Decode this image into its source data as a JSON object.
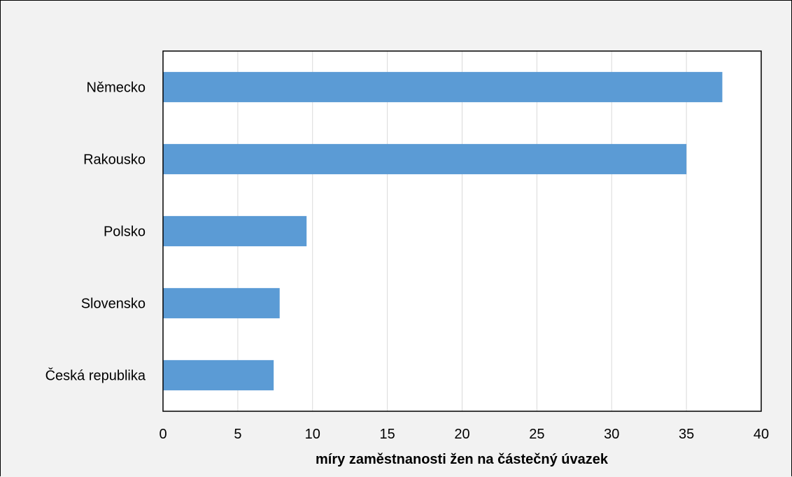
{
  "chart_data": {
    "type": "bar",
    "orientation": "horizontal",
    "categories": [
      "Německo",
      "Rakousko",
      "Polsko",
      "Slovensko",
      "Česká republika"
    ],
    "values": [
      37.4,
      35.0,
      9.6,
      7.8,
      7.4
    ],
    "title": "",
    "xlabel": "míry zaměstnanosti žen na částečný úvazek",
    "ylabel": "",
    "xlim": [
      0,
      40
    ],
    "xticks": [
      0,
      5,
      10,
      15,
      20,
      25,
      30,
      35,
      40
    ],
    "grid": "vertical",
    "bar_color": "#5b9bd5",
    "grid_color": "#d9d9d9"
  }
}
